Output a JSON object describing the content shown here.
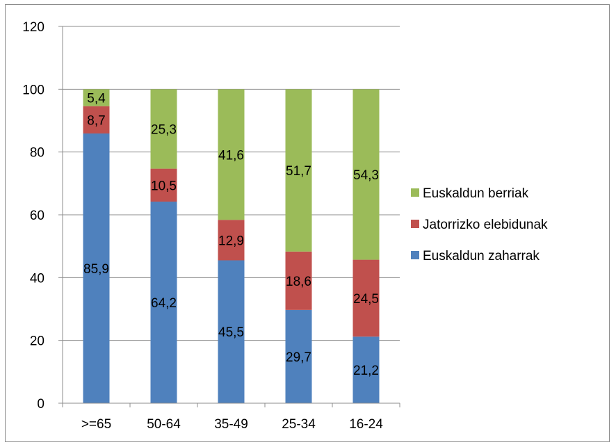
{
  "chart_data": {
    "type": "bar",
    "stacked": true,
    "categories": [
      ">=65",
      "50-64",
      "35-49",
      "25-34",
      "16-24"
    ],
    "series": [
      {
        "name": "Euskaldun zaharrak",
        "color": "#4f81bd",
        "values": [
          85.9,
          64.2,
          45.5,
          29.7,
          21.2
        ],
        "labels": [
          "85,9",
          "64,2",
          "45,5",
          "29,7",
          "21,2"
        ]
      },
      {
        "name": "Jatorrizko elebidunak",
        "color": "#c0504d",
        "values": [
          8.7,
          10.5,
          12.9,
          18.6,
          24.5
        ],
        "labels": [
          "8,7",
          "10,5",
          "12,9",
          "18,6",
          "24,5"
        ]
      },
      {
        "name": "Euskaldun berriak",
        "color": "#9bbb59",
        "values": [
          5.4,
          25.3,
          41.6,
          51.7,
          54.3
        ],
        "labels": [
          "5,4",
          "25,3",
          "41,6",
          "51,7",
          "54,3"
        ]
      }
    ],
    "legend_order": [
      "Euskaldun berriak",
      "Jatorrizko elebidunak",
      "Euskaldun zaharrak"
    ],
    "ylim": [
      0,
      120
    ],
    "yticks": [
      0,
      20,
      40,
      60,
      80,
      100,
      120
    ],
    "grid": true,
    "legend_position": "right",
    "title": "",
    "xlabel": "",
    "ylabel": ""
  }
}
